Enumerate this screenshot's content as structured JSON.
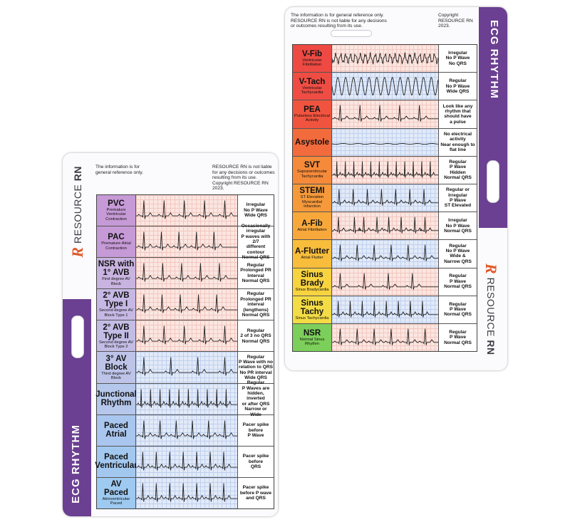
{
  "cards": [
    {
      "title": "ECG RHYTHM",
      "brand": {
        "mark": "R",
        "word": "RESOURCE",
        "suffix": "RN"
      },
      "disclaimer": "The information is for general reference only.",
      "copyright": "RESOURCE RN is not liable for any decisions or outcomes resulting from its use. Copyright RESOURCE RN 2023.",
      "rows": [
        {
          "name": "PVC",
          "sub": "Premature Ventricular Contraction",
          "desc": [
            "Irregular",
            "No P Wave",
            "Wide QRS"
          ],
          "color": "#c69ad6"
        },
        {
          "name": "PAC",
          "sub": "Premature Atrial Contraction",
          "desc": [
            "Occasionally",
            "irregular",
            "P waves with 2/7",
            "different contour",
            "Normal QRS"
          ],
          "color": "#c69ad6"
        },
        {
          "name": "NSR with 1° AVB",
          "sub": "First degree AV Block",
          "desc": [
            "Regular",
            "Prolonged PR",
            "Interval",
            "Normal QRS"
          ],
          "color": "#c9b3e0"
        },
        {
          "name": "2° AVB Type I",
          "sub": "Second degree AV Block Type 1",
          "desc": [
            "Regular",
            "Prolonged PR",
            "interval",
            "(lengthens)",
            "Normal QRS"
          ],
          "color": "#c6b8e4"
        },
        {
          "name": "2° AVB Type II",
          "sub": "Second degree AV Block Type 2",
          "desc": [
            "Regular",
            "2 of 3 no QRS",
            "Normal QRS"
          ],
          "color": "#c3bde6"
        },
        {
          "name": "3° AV Block",
          "sub": "Third degree AV Block",
          "desc": [
            "Regular",
            "P Wave with no",
            "relation to QRS",
            "No PR interval",
            "Wide QRS"
          ],
          "color": "#bdc4e8"
        },
        {
          "name": "Junctional Rhythm",
          "desc": [
            "Regular",
            "P Waves are",
            "hidden, inverted",
            "or after QRS",
            "Narrow or Wide"
          ],
          "color": "#b5c7ea"
        },
        {
          "name": "Paced Atrial",
          "desc": [
            "Pacer spike",
            "before",
            "P Wave"
          ],
          "color": "#a9c6ee"
        },
        {
          "name": "Paced Ventricular",
          "desc": [
            "Pacer spike",
            "before",
            "QRS"
          ],
          "color": "#a3c8ef"
        },
        {
          "name": "AV Paced",
          "sub": "Atrioventricular Paced",
          "desc": [
            "Pacer spike",
            "before P wave",
            "and QRS"
          ],
          "color": "#9ec9f0"
        }
      ]
    },
    {
      "title": "ECG RHYTHM",
      "brand": {
        "mark": "R",
        "word": "RESOURCE",
        "suffix": "RN"
      },
      "disclaimer": "The information is for general reference only. RESOURCE RN is not liable for any decisions or outcomes resulting from its use.",
      "copyright": "Copyright RESOURCE RN 2023.",
      "rows": [
        {
          "name": "V-Fib",
          "sub": "Ventricular Fibrillation",
          "desc": [
            "Irregular",
            "No P Wave",
            "No QRS"
          ],
          "color": "#ee4a43"
        },
        {
          "name": "V-Tach",
          "sub": "Ventricular Tachycardia",
          "desc": [
            "Regular",
            "No P Wave",
            "Wide QRS"
          ],
          "color": "#ef4d44"
        },
        {
          "name": "PEA",
          "sub": "Pulseless Electrical Activity",
          "desc": [
            "Look like any",
            "rhythm that",
            "should have",
            "a pulse"
          ],
          "color": "#f0543f"
        },
        {
          "name": "Asystole",
          "desc": [
            "No electrical",
            "activity",
            "Near enough to",
            "flat line"
          ],
          "color": "#f26b3c"
        },
        {
          "name": "SVT",
          "sub": "Supraventricular Tachycardia",
          "desc": [
            "Regular",
            "P Wave",
            "Hidden",
            "Normal QRS"
          ],
          "color": "#f58a3a"
        },
        {
          "name": "STEMI",
          "sub": "ST Elevation Myocardial Infarction",
          "desc": [
            "Regular or",
            "Irregular",
            "P Wave",
            "ST Elevated"
          ],
          "color": "#f6993a"
        },
        {
          "name": "A-Fib",
          "sub": "Atrial Fibrillation",
          "desc": [
            "Irregular",
            "No P Wave",
            "Normal QRS"
          ],
          "color": "#f8a83b"
        },
        {
          "name": "A-Flutter",
          "sub": "Atrial Flutter",
          "desc": [
            "Regular",
            "No P Wave",
            "Wide &",
            "Narrow QRS"
          ],
          "color": "#f9bd3c"
        },
        {
          "name": "Sinus Brady",
          "sub": "Sinus Bradycardia",
          "desc": [
            "Regular",
            "P Wave",
            "Normal QRS"
          ],
          "color": "#f7d340"
        },
        {
          "name": "Sinus Tachy",
          "sub": "Sinus Tachycardia",
          "desc": [
            "Regular",
            "P Wave",
            "Normal QRS"
          ],
          "color": "#f3dc45"
        },
        {
          "name": "NSR",
          "sub": "Normal Sinus Rhythm",
          "desc": [
            "Regular",
            "P Wave",
            "Normal QRS"
          ],
          "color": "#7ccf5a"
        }
      ]
    }
  ]
}
